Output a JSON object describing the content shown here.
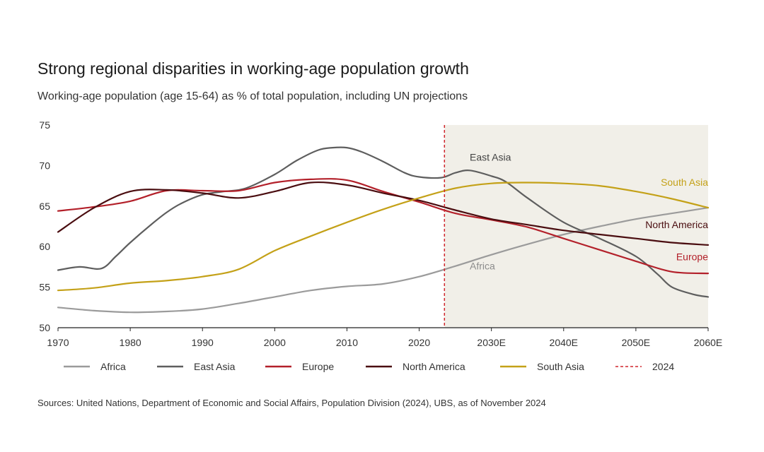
{
  "title": "Strong regional disparities in working-age population growth",
  "subtitle": "Working-age population (age 15-64) as % of total population, including UN projections",
  "source": "Sources: United Nations, Department of Economic and Social Affairs, Population Division (2024), UBS, as of November 2024",
  "chart_data": {
    "type": "line",
    "xlim": [
      1970,
      2060
    ],
    "ylim": [
      50,
      75
    ],
    "y_ticks": [
      50,
      55,
      60,
      65,
      70,
      75
    ],
    "x_ticks": [
      {
        "x": 1970,
        "label": "1970"
      },
      {
        "x": 1980,
        "label": "1980"
      },
      {
        "x": 1990,
        "label": "1990"
      },
      {
        "x": 2000,
        "label": "2000"
      },
      {
        "x": 2010,
        "label": "2010"
      },
      {
        "x": 2020,
        "label": "2020"
      },
      {
        "x": 2030,
        "label": "2030E"
      },
      {
        "x": 2040,
        "label": "2040E"
      },
      {
        "x": 2050,
        "label": "2050E"
      },
      {
        "x": 2060,
        "label": "2060E"
      }
    ],
    "projection_start": 2023.5,
    "projection_shading_color": "#f1efe8",
    "marker_line": {
      "x": 2023.5,
      "label": "2024",
      "color": "#d0262d"
    },
    "grid": false,
    "legend_position": "bottom",
    "series": [
      {
        "name": "Africa",
        "color": "#9b9b9b",
        "label_color": "#8c8c8c",
        "x": [
          1970,
          1975,
          1980,
          1985,
          1990,
          1995,
          2000,
          2005,
          2010,
          2015,
          2020,
          2025,
          2030,
          2035,
          2040,
          2045,
          2050,
          2055,
          2060
        ],
        "y": [
          52.5,
          52.1,
          51.9,
          52.0,
          52.3,
          53.0,
          53.8,
          54.6,
          55.1,
          55.4,
          56.3,
          57.6,
          59.0,
          60.3,
          61.5,
          62.5,
          63.4,
          64.1,
          64.8
        ]
      },
      {
        "name": "East Asia",
        "color": "#5e5e5e",
        "label_color": "#444444",
        "x": [
          1970,
          1973,
          1976,
          1978,
          1980,
          1983,
          1985,
          1987,
          1990,
          1993,
          1996,
          2000,
          2003,
          2006,
          2008,
          2010,
          2012,
          2015,
          2018,
          2020,
          2023,
          2025,
          2027,
          2030,
          2032,
          2035,
          2040,
          2045,
          2050,
          2053,
          2055,
          2058,
          2060
        ],
        "y": [
          57.1,
          57.5,
          57.3,
          58.8,
          60.5,
          62.8,
          64.2,
          65.3,
          66.4,
          66.8,
          67.2,
          68.9,
          70.6,
          71.9,
          72.2,
          72.2,
          71.7,
          70.5,
          69.1,
          68.6,
          68.5,
          69.1,
          69.4,
          68.7,
          68.0,
          66.0,
          63.0,
          61.0,
          58.8,
          56.6,
          55.0,
          54.1,
          53.8
        ]
      },
      {
        "name": "Europe",
        "color": "#b3202a",
        "label_color": "#b3202a",
        "x": [
          1970,
          1975,
          1980,
          1985,
          1990,
          1995,
          2000,
          2005,
          2010,
          2015,
          2020,
          2025,
          2030,
          2035,
          2040,
          2045,
          2050,
          2055,
          2060
        ],
        "y": [
          64.4,
          64.9,
          65.6,
          66.9,
          66.9,
          66.9,
          67.9,
          68.3,
          68.2,
          66.8,
          65.5,
          64.1,
          63.3,
          62.4,
          61.0,
          59.6,
          58.2,
          56.9,
          56.7
        ]
      },
      {
        "name": "North America",
        "color": "#4a0d10",
        "label_color": "#4a0d10",
        "x": [
          1970,
          1975,
          1980,
          1985,
          1990,
          1995,
          2000,
          2005,
          2010,
          2015,
          2020,
          2025,
          2030,
          2035,
          2040,
          2045,
          2050,
          2055,
          2060
        ],
        "y": [
          61.8,
          64.8,
          66.8,
          67.0,
          66.6,
          66.0,
          66.8,
          67.9,
          67.6,
          66.6,
          65.7,
          64.5,
          63.4,
          62.7,
          62.0,
          61.5,
          61.0,
          60.5,
          60.2
        ]
      },
      {
        "name": "South Asia",
        "color": "#c4a118",
        "label_color": "#c4a118",
        "x": [
          1970,
          1975,
          1980,
          1985,
          1990,
          1995,
          2000,
          2005,
          2010,
          2015,
          2020,
          2025,
          2030,
          2035,
          2040,
          2045,
          2050,
          2055,
          2060
        ],
        "y": [
          54.6,
          54.9,
          55.5,
          55.8,
          56.3,
          57.2,
          59.5,
          61.3,
          63.0,
          64.6,
          66.0,
          67.2,
          67.8,
          67.9,
          67.8,
          67.5,
          66.8,
          65.9,
          64.8
        ]
      }
    ],
    "legend": [
      {
        "name": "Africa",
        "color": "#9b9b9b",
        "style": "solid"
      },
      {
        "name": "East Asia",
        "color": "#5e5e5e",
        "style": "solid"
      },
      {
        "name": "Europe",
        "color": "#b3202a",
        "style": "solid"
      },
      {
        "name": "North America",
        "color": "#4a0d10",
        "style": "solid"
      },
      {
        "name": "South Asia",
        "color": "#c4a118",
        "style": "solid"
      },
      {
        "name": "2024",
        "color": "#d0262d",
        "style": "dashed"
      }
    ],
    "annotations": [
      {
        "text": "East Asia",
        "x": 2027,
        "y": 70.6,
        "color": "#444444",
        "anchor": "start"
      },
      {
        "text": "South Asia",
        "x": 2060,
        "y": 67.5,
        "color": "#c4a118",
        "anchor": "end"
      },
      {
        "text": "North America",
        "x": 2060,
        "y": 62.3,
        "color": "#4a0d10",
        "anchor": "end"
      },
      {
        "text": "Europe",
        "x": 2060,
        "y": 58.3,
        "color": "#b3202a",
        "anchor": "end"
      },
      {
        "text": "Africa",
        "x": 2027,
        "y": 57.2,
        "color": "#8c8c8c",
        "anchor": "start"
      }
    ]
  }
}
